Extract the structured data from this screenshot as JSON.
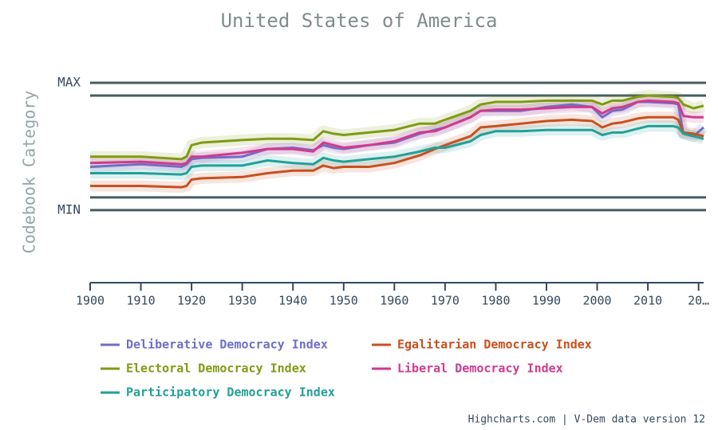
{
  "chart_data": {
    "type": "line",
    "title": "United States of America",
    "y_axis_title": "Codebook Category",
    "credits": "Highcharts.com | V-Dem data version 12",
    "xlim": [
      1900,
      2021
    ],
    "xticks": [
      1900,
      1910,
      1920,
      1930,
      1940,
      1950,
      1960,
      1970,
      1980,
      1990,
      2000,
      2010,
      {
        "value": 2020,
        "label": "20…"
      }
    ],
    "ylim": [
      -0.57,
      1
    ],
    "yticks": [
      {
        "value": 0,
        "label": "MIN"
      },
      {
        "value": 1,
        "label": "MAX"
      }
    ],
    "y_plot_lines": [
      0.1,
      0.9
    ],
    "x": [
      1900,
      1910,
      1918,
      1919,
      1920,
      1922,
      1930,
      1935,
      1940,
      1944,
      1946,
      1948,
      1950,
      1955,
      1960,
      1965,
      1968,
      1970,
      1975,
      1977,
      1980,
      1985,
      1990,
      1995,
      1999,
      2001,
      2003,
      2005,
      2008,
      2010,
      2015,
      2016,
      2017,
      2019,
      2021
    ],
    "series": [
      {
        "name": "Deliberative Democracy Index",
        "color": "#6f6fc4",
        "values": [
          0.34,
          0.36,
          0.34,
          0.36,
          0.4,
          0.41,
          0.42,
          0.48,
          0.49,
          0.47,
          0.51,
          0.49,
          0.48,
          0.51,
          0.53,
          0.6,
          0.63,
          0.65,
          0.73,
          0.78,
          0.78,
          0.78,
          0.81,
          0.83,
          0.81,
          0.73,
          0.78,
          0.79,
          0.85,
          0.85,
          0.84,
          0.83,
          0.6,
          0.58,
          0.65
        ]
      },
      {
        "name": "Egalitarian Democracy Index",
        "color": "#c8501f",
        "values": [
          0.19,
          0.19,
          0.18,
          0.19,
          0.24,
          0.25,
          0.26,
          0.29,
          0.31,
          0.31,
          0.35,
          0.33,
          0.34,
          0.34,
          0.37,
          0.43,
          0.48,
          0.51,
          0.58,
          0.65,
          0.66,
          0.68,
          0.7,
          0.71,
          0.7,
          0.65,
          0.68,
          0.69,
          0.72,
          0.73,
          0.73,
          0.71,
          0.61,
          0.6,
          0.58
        ]
      },
      {
        "name": "Electoral Democracy Index",
        "color": "#7f9a14",
        "values": [
          0.42,
          0.42,
          0.4,
          0.42,
          0.51,
          0.53,
          0.55,
          0.56,
          0.56,
          0.55,
          0.62,
          0.6,
          0.59,
          0.61,
          0.63,
          0.68,
          0.68,
          0.71,
          0.78,
          0.83,
          0.85,
          0.85,
          0.86,
          0.86,
          0.86,
          0.83,
          0.86,
          0.86,
          0.89,
          0.9,
          0.89,
          0.88,
          0.83,
          0.8,
          0.82
        ]
      },
      {
        "name": "Liberal Democracy Index",
        "color": "#d03b8d",
        "values": [
          0.37,
          0.38,
          0.36,
          0.37,
          0.42,
          0.42,
          0.45,
          0.48,
          0.48,
          0.46,
          0.53,
          0.51,
          0.49,
          0.51,
          0.54,
          0.61,
          0.62,
          0.65,
          0.73,
          0.78,
          0.79,
          0.79,
          0.8,
          0.81,
          0.81,
          0.76,
          0.8,
          0.81,
          0.85,
          0.86,
          0.85,
          0.84,
          0.74,
          0.73,
          0.73
        ]
      },
      {
        "name": "Participatory Democracy Index",
        "color": "#22a098",
        "values": [
          0.29,
          0.29,
          0.28,
          0.29,
          0.34,
          0.35,
          0.35,
          0.39,
          0.37,
          0.36,
          0.41,
          0.39,
          0.38,
          0.4,
          0.42,
          0.46,
          0.49,
          0.49,
          0.54,
          0.59,
          0.62,
          0.62,
          0.63,
          0.63,
          0.63,
          0.59,
          0.61,
          0.61,
          0.64,
          0.66,
          0.66,
          0.65,
          0.6,
          0.58,
          0.56
        ]
      }
    ]
  }
}
